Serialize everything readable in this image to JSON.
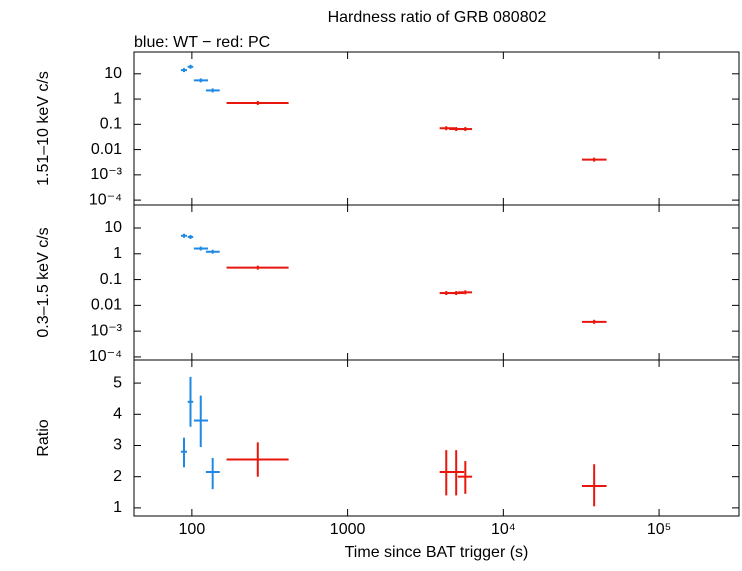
{
  "chart_data": [
    {
      "type": "scatter",
      "title": "Hardness ratio of GRB 080802",
      "subtitle": "blue: WT − red: PC",
      "ylabel": "1.51–10 keV c/s",
      "xscale": "log",
      "yscale": "log",
      "xlim": [
        42.5,
        326000
      ],
      "ylim": [
        6.4e-05,
        73
      ],
      "yticks": [
        10,
        1,
        0.1,
        0.01,
        {
          "value": 0.001,
          "label": "10⁻³"
        },
        {
          "value": 0.0001,
          "label": "10⁻⁴"
        }
      ],
      "series": [
        {
          "color": "#1e88e5",
          "x": [
            89,
            98,
            114,
            136
          ],
          "x_lo": [
            85,
            94,
            103,
            123
          ],
          "x_hi": [
            93,
            102,
            127,
            151
          ],
          "values": [
            14,
            19,
            5.5,
            2.2
          ]
        },
        {
          "color": "#e8160c",
          "x": [
            265,
            4300,
            4980,
            5700,
            38300
          ],
          "x_lo": [
            167,
            3900,
            4500,
            5100,
            32000
          ],
          "x_hi": [
            418,
            4900,
            5600,
            6300,
            46000
          ],
          "values": [
            0.7,
            0.07,
            0.065,
            0.065,
            0.004
          ]
        }
      ]
    },
    {
      "type": "scatter",
      "ylabel": "0.3–1.5 keV c/s",
      "xscale": "log",
      "yscale": "log",
      "xlim": [
        42.5,
        326000
      ],
      "ylim": [
        7.6e-05,
        78
      ],
      "yticks": [
        10,
        1,
        0.1,
        0.01,
        {
          "value": 0.001,
          "label": "10⁻³"
        },
        {
          "value": 0.0001,
          "label": "10⁻⁴"
        }
      ],
      "series": [
        {
          "color": "#1e88e5",
          "x": [
            89,
            98,
            114,
            136
          ],
          "x_lo": [
            85,
            94,
            103,
            123
          ],
          "x_hi": [
            93,
            102,
            127,
            151
          ],
          "values": [
            5,
            4.5,
            1.6,
            1.2
          ]
        },
        {
          "color": "#e8160c",
          "x": [
            265,
            4300,
            4980,
            5700,
            38300
          ],
          "x_lo": [
            167,
            3900,
            4500,
            5100,
            32000
          ],
          "x_hi": [
            418,
            4900,
            5600,
            6300,
            46000
          ],
          "values": [
            0.29,
            0.03,
            0.03,
            0.032,
            0.0023
          ]
        }
      ]
    },
    {
      "type": "scatter",
      "ylabel": "Ratio",
      "xlabel": "Time since BAT trigger (s)",
      "xscale": "log",
      "yscale": "linear",
      "xlim": [
        42.5,
        326000
      ],
      "ylim": [
        0.74,
        5.74
      ],
      "xticks": [
        100,
        1000,
        {
          "value": 10000,
          "label": "10⁴"
        },
        {
          "value": 100000,
          "label": "10⁵"
        }
      ],
      "yticks": [
        1,
        2,
        3,
        4,
        5
      ],
      "series": [
        {
          "color": "#1e88e5",
          "x": [
            89,
            98,
            114,
            136
          ],
          "x_lo": [
            85,
            94,
            103,
            123
          ],
          "x_hi": [
            93,
            102,
            127,
            151
          ],
          "values": [
            2.8,
            4.4,
            3.8,
            2.15
          ],
          "y_lo": [
            2.3,
            3.6,
            2.95,
            1.6
          ],
          "y_hi": [
            3.25,
            5.2,
            4.6,
            2.6
          ]
        },
        {
          "color": "#e8160c",
          "x": [
            265,
            4300,
            4980,
            5700,
            38300
          ],
          "x_lo": [
            167,
            3900,
            4500,
            5100,
            32000
          ],
          "x_hi": [
            418,
            4900,
            5600,
            6300,
            46000
          ],
          "values": [
            2.55,
            2.15,
            2.15,
            2.0,
            1.7
          ],
          "y_lo": [
            2.0,
            1.4,
            1.4,
            1.45,
            1.05
          ],
          "y_hi": [
            3.1,
            2.85,
            2.85,
            2.5,
            2.4
          ]
        }
      ]
    }
  ]
}
